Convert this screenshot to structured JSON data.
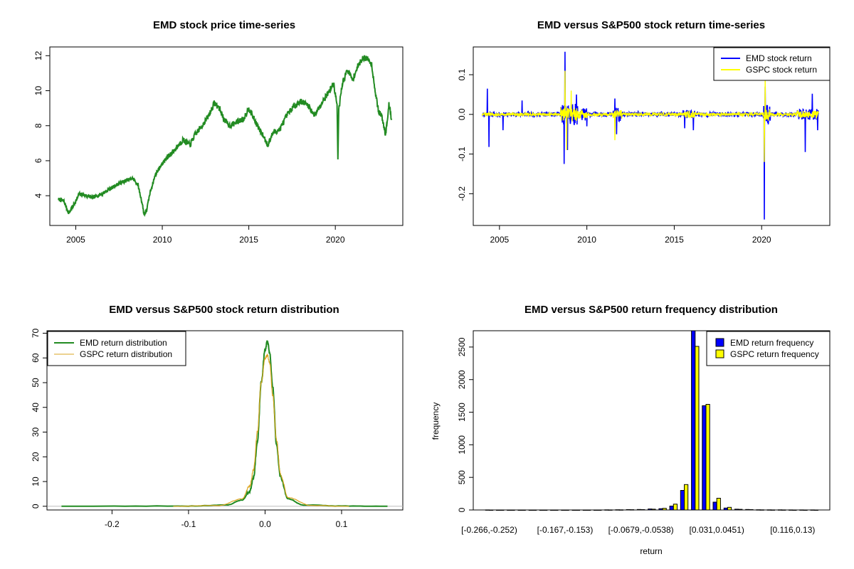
{
  "chart_data": [
    {
      "type": "line",
      "title": "EMD stock price time-series",
      "xlabel": "",
      "ylabel": "",
      "xlim": [
        2003.5,
        2023.9
      ],
      "ylim": [
        2.3,
        12.5
      ],
      "xticks": [
        "2005",
        "2010",
        "2015",
        "2020"
      ],
      "yticks": [
        "4",
        "6",
        "8",
        "10",
        "12"
      ],
      "series": [
        {
          "name": "EMD",
          "color": "#228B22",
          "x": [
            2004.0,
            2004.3,
            2004.6,
            2004.9,
            2005.2,
            2005.6,
            2006.0,
            2006.5,
            2007.0,
            2007.5,
            2008.0,
            2008.3,
            2008.6,
            2008.85,
            2008.95,
            2009.1,
            2009.3,
            2009.6,
            2009.9,
            2010.3,
            2010.7,
            2011.2,
            2011.6,
            2011.9,
            2012.3,
            2012.7,
            2013.0,
            2013.3,
            2013.6,
            2013.9,
            2014.3,
            2014.7,
            2015.0,
            2015.3,
            2015.6,
            2015.9,
            2016.1,
            2016.4,
            2016.8,
            2017.2,
            2017.6,
            2018.0,
            2018.4,
            2018.8,
            2019.2,
            2019.6,
            2019.9,
            2020.1,
            2020.15,
            2020.2,
            2020.4,
            2020.7,
            2021.0,
            2021.3,
            2021.6,
            2021.9,
            2022.1,
            2022.3,
            2022.5,
            2022.7,
            2022.9,
            2023.1,
            2023.25
          ],
          "y": [
            3.8,
            3.7,
            3.0,
            3.5,
            4.1,
            4.0,
            3.9,
            4.1,
            4.4,
            4.7,
            4.9,
            5.0,
            4.6,
            3.5,
            2.9,
            3.2,
            4.2,
            5.2,
            5.7,
            6.2,
            6.6,
            7.2,
            6.9,
            7.5,
            8.0,
            8.6,
            9.3,
            9.0,
            8.3,
            8.0,
            8.2,
            8.4,
            9.0,
            8.4,
            7.8,
            7.3,
            6.9,
            7.6,
            7.8,
            8.6,
            9.1,
            9.4,
            9.2,
            8.6,
            9.3,
            9.9,
            10.4,
            9.2,
            6.0,
            8.9,
            10.4,
            11.2,
            10.6,
            11.4,
            11.9,
            11.8,
            11.5,
            10.0,
            8.8,
            8.5,
            7.5,
            9.2,
            8.4
          ]
        }
      ]
    },
    {
      "type": "line",
      "title": "EMD versus S&P500 stock return time-series",
      "xlabel": "",
      "ylabel": "",
      "xlim": [
        2003.5,
        2023.9
      ],
      "ylim": [
        -0.28,
        0.17
      ],
      "xticks": [
        "2005",
        "2010",
        "2015",
        "2020"
      ],
      "yticks": [
        "-0.2",
        "-0.1",
        "0.0",
        "0.1"
      ],
      "series": [
        {
          "name": "EMD stock return",
          "color": "#0000FF",
          "spikes": [
            [
              2004.3,
              0.065
            ],
            [
              2004.4,
              -0.082
            ],
            [
              2005.2,
              -0.04
            ],
            [
              2006.3,
              0.035
            ],
            [
              2008.7,
              -0.125
            ],
            [
              2008.75,
              0.158
            ],
            [
              2008.9,
              -0.09
            ],
            [
              2009.4,
              0.05
            ],
            [
              2010.0,
              -0.03
            ],
            [
              2011.6,
              0.04
            ],
            [
              2011.7,
              -0.05
            ],
            [
              2015.6,
              -0.035
            ],
            [
              2016.1,
              -0.04
            ],
            [
              2020.15,
              -0.265
            ],
            [
              2020.2,
              0.07
            ],
            [
              2022.5,
              -0.095
            ],
            [
              2022.9,
              0.052
            ],
            [
              2023.2,
              -0.04
            ]
          ],
          "noise_amplitude": 0.018
        },
        {
          "name": "GSPC stock return",
          "color": "#FFFF00",
          "spikes": [
            [
              2008.75,
              0.11
            ],
            [
              2008.85,
              -0.09
            ],
            [
              2009.1,
              0.06
            ],
            [
              2011.6,
              -0.065
            ],
            [
              2020.2,
              0.09
            ],
            [
              2020.15,
              -0.12
            ]
          ],
          "noise_amplitude": 0.012
        }
      ],
      "legend": [
        "EMD stock return",
        "GSPC stock return"
      ],
      "legend_position": "top-right"
    },
    {
      "type": "line",
      "title": "EMD versus S&P500 stock return distribution",
      "xlabel": "",
      "ylabel": "",
      "xlim": [
        -0.285,
        0.18
      ],
      "ylim": [
        -1.5,
        71
      ],
      "xticks": [
        "-0.2",
        "-0.1",
        "0.0",
        "0.1"
      ],
      "yticks": [
        "0",
        "10",
        "20",
        "30",
        "40",
        "50",
        "60",
        "70"
      ],
      "series": [
        {
          "name": "EMD return distribution",
          "color": "#228B22",
          "x": [
            -0.266,
            -0.1,
            -0.05,
            -0.03,
            -0.02,
            -0.015,
            -0.01,
            -0.005,
            0.0,
            0.003,
            0.006,
            0.01,
            0.015,
            0.02,
            0.03,
            0.05,
            0.1,
            0.16
          ],
          "y": [
            0.0,
            0.1,
            0.5,
            2.5,
            6.0,
            12.0,
            26.0,
            50.0,
            63.0,
            67.0,
            62.0,
            48.0,
            25.0,
            12.0,
            3.0,
            0.5,
            0.1,
            0.0
          ]
        },
        {
          "name": "GSPC return distribution",
          "color": "#DAA520",
          "x": [
            -0.12,
            -0.06,
            -0.03,
            -0.02,
            -0.015,
            -0.01,
            -0.005,
            0.0,
            0.003,
            0.006,
            0.01,
            0.015,
            0.02,
            0.03,
            0.06,
            0.11
          ],
          "y": [
            0.0,
            0.3,
            3.0,
            8.0,
            15.0,
            30.0,
            50.0,
            60.0,
            61.0,
            58.0,
            45.0,
            27.0,
            13.0,
            3.5,
            0.3,
            0.0
          ]
        }
      ],
      "legend": [
        "EMD return distribution",
        "GSPC return distribution"
      ],
      "legend_position": "top-left"
    },
    {
      "type": "bar",
      "title": "EMD versus S&P500 return frequency distribution",
      "xlabel": "return",
      "ylabel": "frequency",
      "ylim": [
        0,
        2750
      ],
      "yticks": [
        "0",
        "500",
        "1000",
        "1500",
        "2000",
        "2500"
      ],
      "categories": [
        "[-0.266,-0.252)",
        "",
        "",
        "",
        "",
        "",
        "",
        "[-0.167,-0.153)",
        "",
        "",
        "",
        "",
        "",
        "",
        "[-0.0679,-0.0538)",
        "",
        "",
        "",
        "",
        "",
        "",
        "[0.031,0.0451)",
        "",
        "",
        "",
        "",
        "",
        "",
        "[0.116,0.13)",
        "",
        ""
      ],
      "series": [
        {
          "name": "EMD return frequency",
          "color": "#0000FF",
          "values": [
            1,
            0,
            0,
            0,
            0,
            0,
            0,
            0,
            0,
            0,
            0,
            2,
            3,
            5,
            8,
            15,
            20,
            60,
            300,
            2750,
            1600,
            120,
            30,
            12,
            8,
            3,
            2,
            2,
            1,
            1,
            1
          ]
        },
        {
          "name": "GSPC return frequency",
          "color": "#FFFF00",
          "values": [
            0,
            0,
            0,
            0,
            0,
            0,
            0,
            0,
            0,
            0,
            0,
            1,
            2,
            4,
            6,
            12,
            25,
            90,
            390,
            2510,
            1620,
            180,
            40,
            10,
            5,
            2,
            1,
            1,
            0,
            0,
            0
          ]
        }
      ],
      "legend": [
        "EMD return frequency",
        "GSPC return frequency"
      ],
      "legend_position": "top-right"
    }
  ]
}
